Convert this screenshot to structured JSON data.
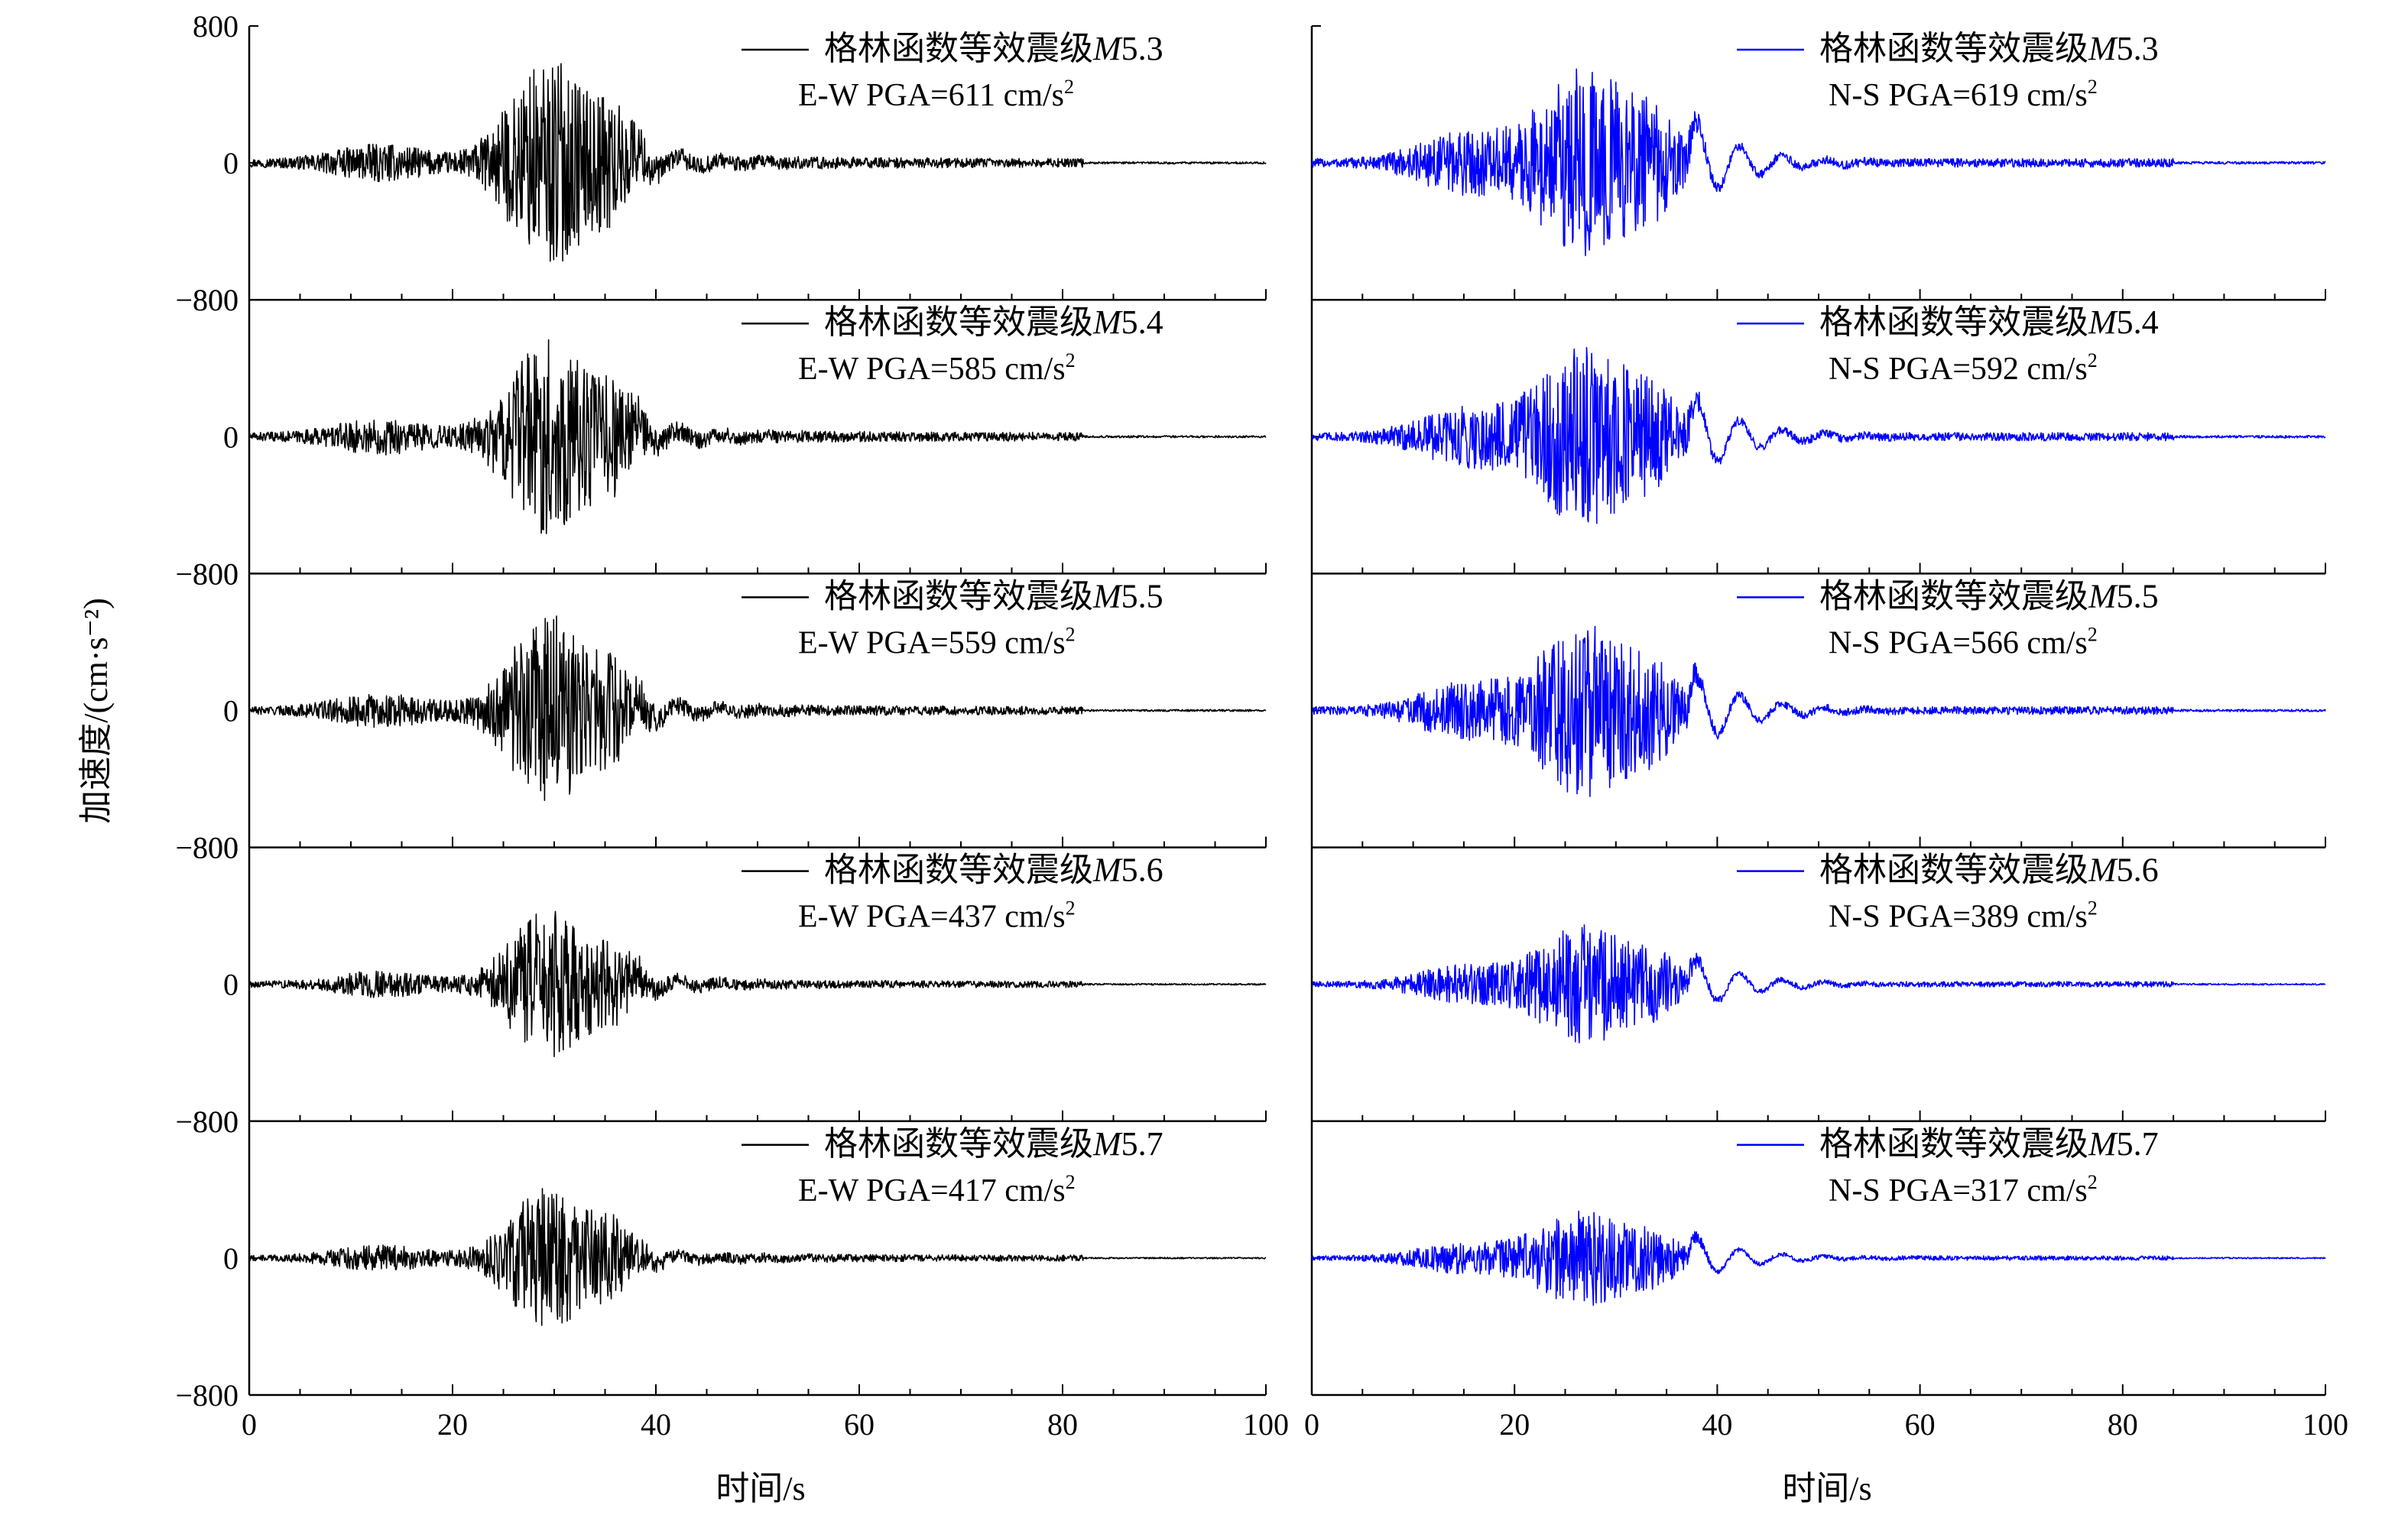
{
  "y_axis_label": "加速度/(cm·s⁻²)",
  "x_axis_label": "时间/s",
  "y_ticks": [
    "800",
    "0",
    "−800"
  ],
  "x_ticks": [
    "0",
    "20",
    "40",
    "60",
    "80",
    "100"
  ],
  "legend_prefix": "格林函数等效震级",
  "legend_magnitude_symbol": "M",
  "colors": {
    "ew": "#000000",
    "ns": "#0000ff"
  },
  "chart_data": {
    "type": "line",
    "x_range": [
      0,
      100
    ],
    "y_range": [
      -800,
      800
    ],
    "panels": [
      {
        "magnitude": "5.3",
        "ew": {
          "component": "E-W",
          "pga_text": "PGA=611 cm/s",
          "pga": 611,
          "unit_exp": "2"
        },
        "ns": {
          "component": "N-S",
          "pga_text": "PGA=619 cm/s",
          "pga": 619,
          "unit_exp": "2"
        }
      },
      {
        "magnitude": "5.4",
        "ew": {
          "component": "E-W",
          "pga_text": "PGA=585 cm/s",
          "pga": 585,
          "unit_exp": "2"
        },
        "ns": {
          "component": "N-S",
          "pga_text": "PGA=592 cm/s",
          "pga": 592,
          "unit_exp": "2"
        }
      },
      {
        "magnitude": "5.5",
        "ew": {
          "component": "E-W",
          "pga_text": "PGA=559 cm/s",
          "pga": 559,
          "unit_exp": "2"
        },
        "ns": {
          "component": "N-S",
          "pga_text": "PGA=566 cm/s",
          "pga": 566,
          "unit_exp": "2"
        }
      },
      {
        "magnitude": "5.6",
        "ew": {
          "component": "E-W",
          "pga_text": "PGA=437 cm/s",
          "pga": 437,
          "unit_exp": "2"
        },
        "ns": {
          "component": "N-S",
          "pga_text": "PGA=389 cm/s",
          "pga": 389,
          "unit_exp": "2"
        }
      },
      {
        "magnitude": "5.7",
        "ew": {
          "component": "E-W",
          "pga_text": "PGA=417 cm/s",
          "pga": 417,
          "unit_exp": "2"
        },
        "ns": {
          "component": "N-S",
          "pga_text": "PGA=317 cm/s",
          "pga": 317,
          "unit_exp": "2"
        }
      }
    ]
  }
}
